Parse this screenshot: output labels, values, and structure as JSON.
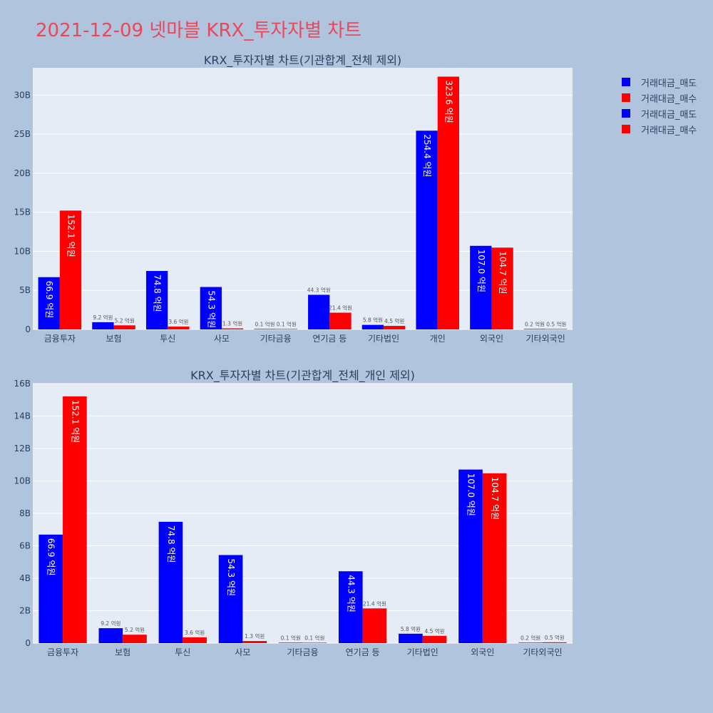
{
  "page": {
    "title": "2021-12-09 넷마블 KRX_투자자별 차트"
  },
  "legend": {
    "items": [
      {
        "label": "거래대금_매도",
        "color": "#0000ff"
      },
      {
        "label": "거래대금_매수",
        "color": "#ff0000"
      },
      {
        "label": "거래대금_매도",
        "color": "#0000ff"
      },
      {
        "label": "거래대금_매수",
        "color": "#ff0000"
      }
    ]
  },
  "colors": {
    "sell": "#0000ff",
    "buy": "#ff0000",
    "plot_bg": "#e5ecf6",
    "axis_text": "#2a3f5f",
    "inside_label": "#ffffff",
    "outside_label": "#555555"
  },
  "chart_data": [
    {
      "type": "bar",
      "title": "KRX_투자자별 차트(기관합계_전체 제외)",
      "categories": [
        "금융투자",
        "보험",
        "투신",
        "사모",
        "기타금융",
        "연기금 등",
        "기타법인",
        "개인",
        "외국인",
        "기타외국인"
      ],
      "series": [
        {
          "name": "거래대금_매도",
          "values": [
            6.69,
            0.92,
            7.48,
            5.43,
            0.01,
            4.43,
            0.58,
            25.44,
            10.7,
            0.02
          ],
          "labels": [
            "66.9 억원",
            "9.2 억원",
            "74.8 억원",
            "54.3 억원",
            "0.1 억원",
            "44.3 억원",
            "5.8 억원",
            "254.4 억원",
            "107.0 억원",
            "0.2 억원"
          ]
        },
        {
          "name": "거래대금_매수",
          "values": [
            15.21,
            0.52,
            0.36,
            0.13,
            0.01,
            2.14,
            0.45,
            32.36,
            10.47,
            0.05
          ],
          "labels": [
            "152.1 억원",
            "5.2 억원",
            "3.6 억원",
            "1.3 억원",
            "0.1 억원",
            "21.4 억원",
            "4.5 억원",
            "323.6 억원",
            "104.7 억원",
            "0.5 억원"
          ]
        }
      ],
      "ylim": [
        0,
        33.5
      ],
      "yticks": [
        0,
        5,
        10,
        15,
        20,
        25,
        30
      ],
      "ytick_labels": [
        "0",
        "5B",
        "10B",
        "15B",
        "20B",
        "25B",
        "30B"
      ],
      "grid": true,
      "legend": "right"
    },
    {
      "type": "bar",
      "title": "KRX_투자자별 차트(기관합계_전체_개인 제외)",
      "categories": [
        "금융투자",
        "보험",
        "투신",
        "사모",
        "기타금융",
        "연기금 등",
        "기타법인",
        "외국인",
        "기타외국인"
      ],
      "series": [
        {
          "name": "거래대금_매도",
          "values": [
            6.69,
            0.92,
            7.48,
            5.43,
            0.01,
            4.43,
            0.58,
            10.7,
            0.02
          ],
          "labels": [
            "66.9 억원",
            "9.2 억원",
            "74.8 억원",
            "54.3 억원",
            "0.1 억원",
            "44.3 억원",
            "5.8 억원",
            "107.0 억원",
            "0.2 억원"
          ]
        },
        {
          "name": "거래대금_매수",
          "values": [
            15.21,
            0.52,
            0.36,
            0.13,
            0.01,
            2.14,
            0.45,
            10.47,
            0.05
          ],
          "labels": [
            "152.1 억원",
            "5.2 억원",
            "3.6 억원",
            "1.3 억원",
            "0.1 억원",
            "21.4 억원",
            "4.5 억원",
            "104.7 억원",
            "0.5 억원"
          ]
        }
      ],
      "ylim": [
        0,
        16
      ],
      "yticks": [
        0,
        2,
        4,
        6,
        8,
        10,
        12,
        14,
        16
      ],
      "ytick_labels": [
        "0",
        "2B",
        "4B",
        "6B",
        "8B",
        "10B",
        "12B",
        "14B",
        "16B"
      ],
      "grid": true,
      "legend": "none"
    }
  ]
}
